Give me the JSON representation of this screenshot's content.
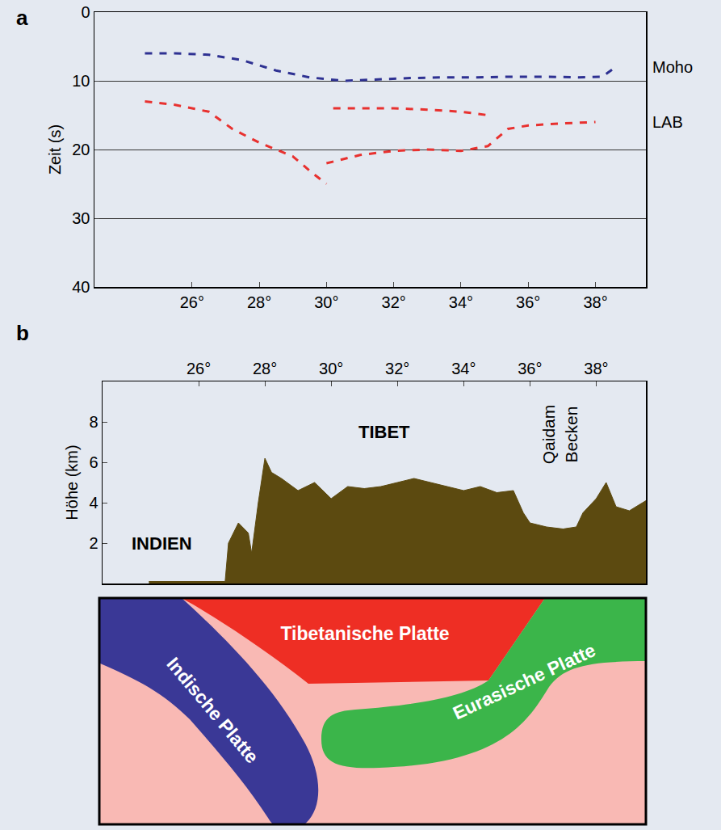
{
  "chart_data": [
    {
      "type": "line",
      "panel_label": "a",
      "y_label": "Zeit (s)",
      "xlim": [
        23.1,
        39.5
      ],
      "xticks": [
        {
          "value": 26,
          "label": "26°"
        },
        {
          "value": 28,
          "label": "28°"
        },
        {
          "value": 30,
          "label": "30°"
        },
        {
          "value": 32,
          "label": "32°"
        },
        {
          "value": 34,
          "label": "34°"
        },
        {
          "value": 36,
          "label": "36°"
        },
        {
          "value": 38,
          "label": "38°"
        }
      ],
      "ylim": [
        40,
        0
      ],
      "yticks": [
        0,
        10,
        20,
        30,
        40
      ],
      "grid": true,
      "series": [
        {
          "name": "Moho",
          "color": "#2e3192",
          "line_style": "dashed",
          "x": [
            24.6,
            25.5,
            26.5,
            27.5,
            28.5,
            29.5,
            30.5,
            31.5,
            32.5,
            33.5,
            34.5,
            35.5,
            36.5,
            37.5,
            38.2,
            38.6
          ],
          "values": [
            6,
            6,
            6.2,
            7,
            8.5,
            9.5,
            10,
            9.8,
            9.6,
            9.5,
            9.5,
            9.4,
            9.4,
            9.5,
            9.4,
            8
          ]
        },
        {
          "name": "LAB",
          "color": "#e8312f",
          "line_style": "dashed",
          "x": [
            24.6,
            25.5,
            26.5,
            27.2,
            28,
            29,
            29.6,
            30,
            null,
            30.2,
            31,
            32,
            33,
            34,
            34.8,
            null,
            30,
            31,
            32,
            33,
            34,
            34.8,
            35.4,
            36,
            37,
            38
          ],
          "values": [
            13,
            13.5,
            14.5,
            17,
            19,
            21,
            23.5,
            25,
            null,
            14,
            14,
            14,
            14.2,
            14.5,
            15,
            null,
            22,
            20.8,
            20.2,
            20,
            20.2,
            19.5,
            17,
            16.5,
            16.2,
            16
          ]
        }
      ]
    },
    {
      "type": "area",
      "panel_label": "b",
      "y_label": "Höhe (km)",
      "color": "#5c4a10",
      "xlim": [
        23.1,
        39.5
      ],
      "xticks": [
        {
          "value": 26,
          "label": "26°"
        },
        {
          "value": 28,
          "label": "28°"
        },
        {
          "value": 30,
          "label": "30°"
        },
        {
          "value": 32,
          "label": "32°"
        },
        {
          "value": 34,
          "label": "34°"
        },
        {
          "value": 36,
          "label": "36°"
        },
        {
          "value": 38,
          "label": "38°"
        }
      ],
      "ylim": [
        0,
        10
      ],
      "yticks": [
        2,
        4,
        6,
        8
      ],
      "grid": false,
      "x": [
        24.5,
        26.8,
        26.9,
        27.2,
        27.5,
        27.6,
        27.8,
        28,
        28.2,
        28.5,
        29,
        29.5,
        30,
        30.5,
        31,
        31.5,
        32,
        32.5,
        33,
        33.5,
        34,
        34.5,
        35,
        35.5,
        35.8,
        36,
        36.5,
        37,
        37.4,
        37.6,
        38,
        38.3,
        38.6,
        39,
        39.5
      ],
      "values": [
        0.1,
        0.1,
        2,
        3,
        2.5,
        1.5,
        4,
        6.2,
        5.5,
        5.2,
        4.6,
        5,
        4.2,
        4.8,
        4.7,
        4.8,
        5,
        5.2,
        5,
        4.8,
        4.6,
        4.8,
        4.5,
        4.6,
        3.5,
        3,
        2.8,
        2.7,
        2.8,
        3.5,
        4.2,
        5,
        3.8,
        3.6,
        4.1
      ],
      "annotations": [
        "INDIEN",
        "TIBET",
        "Qaidam Becken"
      ]
    }
  ],
  "diagram": {
    "plates": [
      {
        "label": "Tibetanische Platte",
        "color": "#ee2e24"
      },
      {
        "label": "Indische Platte",
        "color": "#3a3896"
      },
      {
        "label": "Eurasische Platte",
        "color": "#3bb54a"
      }
    ],
    "mantle_color": "#f9b9b4"
  }
}
